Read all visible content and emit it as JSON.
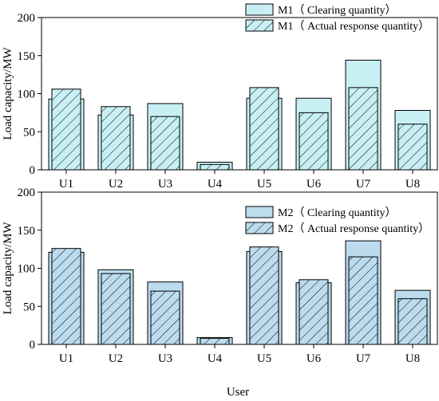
{
  "chart_data": [
    {
      "type": "bar",
      "categories": [
        "U1",
        "U2",
        "U3",
        "U4",
        "U5",
        "U6",
        "U7",
        "U8"
      ],
      "series": [
        {
          "name": "M1（ Clearing quantity）",
          "values": [
            93,
            72,
            87,
            10,
            94,
            94,
            144,
            78
          ],
          "color": "#c8f0f4",
          "pattern": "solid"
        },
        {
          "name": "M1（ Actual response quantity）",
          "values": [
            106,
            83,
            70,
            7,
            108,
            75,
            108,
            60
          ],
          "color": "#c8f0f4",
          "pattern": "hatch"
        }
      ],
      "ylabel": "Load capacity/MW",
      "ylim": [
        0,
        200
      ],
      "yticks": [
        "0",
        "50",
        "100",
        "150",
        "200"
      ],
      "legend": "top-right"
    },
    {
      "type": "bar",
      "categories": [
        "U1",
        "U2",
        "U3",
        "U4",
        "U5",
        "U6",
        "U7",
        "U8"
      ],
      "series": [
        {
          "name": "M2（ Clearing quantity）",
          "values": [
            121,
            98,
            82,
            9,
            122,
            81,
            136,
            71
          ],
          "color": "#bcdcee",
          "pattern": "solid"
        },
        {
          "name": "M2（ Actual response quantity）",
          "values": [
            126,
            93,
            70,
            8,
            128,
            85,
            115,
            60
          ],
          "color": "#bcdcee",
          "pattern": "hatch"
        }
      ],
      "ylabel": "Load capacity/MW",
      "ylim": [
        0,
        200
      ],
      "yticks": [
        "0",
        "50",
        "100",
        "150",
        "200"
      ],
      "legend": "top-right"
    }
  ],
  "xlabel": "User"
}
